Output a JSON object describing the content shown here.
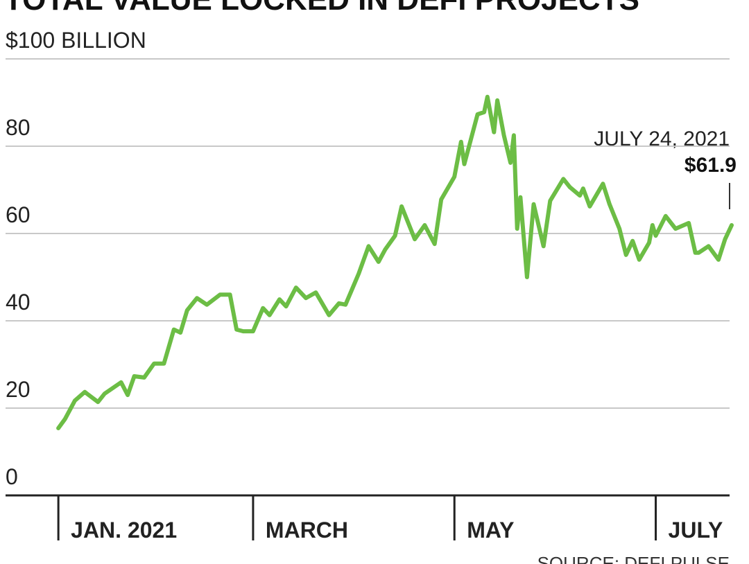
{
  "chart_data": {
    "type": "line",
    "title": "TOTAL VALUE LOCKED IN DEFI PROJECTS",
    "source": "SOURCE: DEFI PULSE",
    "annotation": {
      "date": "JULY 24, 2021",
      "value": "$61.9"
    },
    "x": [
      "2021-01-01",
      "2021-01-03",
      "2021-01-06",
      "2021-01-09",
      "2021-01-13",
      "2021-01-15",
      "2021-01-20",
      "2021-01-22",
      "2021-01-24",
      "2021-01-27",
      "2021-01-30",
      "2021-02-02",
      "2021-02-05",
      "2021-02-07",
      "2021-02-09",
      "2021-02-12",
      "2021-02-15",
      "2021-02-19",
      "2021-02-22",
      "2021-02-24",
      "2021-02-26",
      "2021-03-01",
      "2021-03-04",
      "2021-03-06",
      "2021-03-09",
      "2021-03-11",
      "2021-03-14",
      "2021-03-17",
      "2021-03-20",
      "2021-03-24",
      "2021-03-27",
      "2021-03-29",
      "2021-04-02",
      "2021-04-05",
      "2021-04-08",
      "2021-04-10",
      "2021-04-13",
      "2021-04-15",
      "2021-04-19",
      "2021-04-22",
      "2021-04-25",
      "2021-04-27",
      "2021-05-01",
      "2021-05-03",
      "2021-05-04",
      "2021-05-08",
      "2021-05-10",
      "2021-05-11",
      "2021-05-13",
      "2021-05-14",
      "2021-05-16",
      "2021-05-18",
      "2021-05-19",
      "2021-05-20",
      "2021-05-21",
      "2021-05-23",
      "2021-05-25",
      "2021-05-28",
      "2021-05-30",
      "2021-06-03",
      "2021-06-05",
      "2021-06-08",
      "2021-06-09",
      "2021-06-11",
      "2021-06-15",
      "2021-06-17",
      "2021-06-20",
      "2021-06-22",
      "2021-06-24",
      "2021-06-26",
      "2021-06-29",
      "2021-06-30",
      "2021-07-01",
      "2021-07-04",
      "2021-07-07",
      "2021-07-11",
      "2021-07-13",
      "2021-07-14",
      "2021-07-17",
      "2021-07-20",
      "2021-07-22",
      "2021-07-24"
    ],
    "series": [
      {
        "name": "Total value locked",
        "color": "#6cbd45",
        "values": [
          15.4,
          17.5,
          21.7,
          23.7,
          21.4,
          23.3,
          25.9,
          23,
          27.3,
          27,
          30.2,
          30.2,
          38,
          37.3,
          42.4,
          45.2,
          43.7,
          46,
          46,
          38,
          37.6,
          37.6,
          42.9,
          41.3,
          44.9,
          43.3,
          47.6,
          45.2,
          46.5,
          41.3,
          44,
          43.7,
          50.8,
          57.1,
          53.5,
          56.3,
          59.5,
          66.2,
          58.7,
          61.9,
          57.6,
          67.8,
          73,
          81,
          75.9,
          87.3,
          87.8,
          91.3,
          83.2,
          90.5,
          82.5,
          76.2,
          82.5,
          61.1,
          68.3,
          50,
          66.7,
          57.1,
          67.5,
          72.5,
          70.6,
          68.7,
          70.3,
          66.2,
          71.4,
          66.7,
          61.1,
          55.1,
          58.3,
          54,
          57.9,
          61.9,
          59.5,
          64,
          61.1,
          62.4,
          55.6,
          55.6,
          57.1,
          54,
          58.7,
          61.9
        ]
      }
    ],
    "xlim": [
      "2020-12-16",
      "2021-07-24"
    ],
    "xticks": [
      {
        "value": "2021-01-01",
        "label": "JAN. 2021"
      },
      {
        "value": "2021-03-01",
        "label": "MARCH"
      },
      {
        "value": "2021-05-01",
        "label": "MAY"
      },
      {
        "value": "2021-07-01",
        "label": "JULY"
      }
    ],
    "ylim": [
      0,
      100
    ],
    "yticks": [
      0,
      20,
      40,
      60,
      80,
      {
        "value": 100,
        "label": "$100 BILLION"
      }
    ],
    "grid": true
  }
}
